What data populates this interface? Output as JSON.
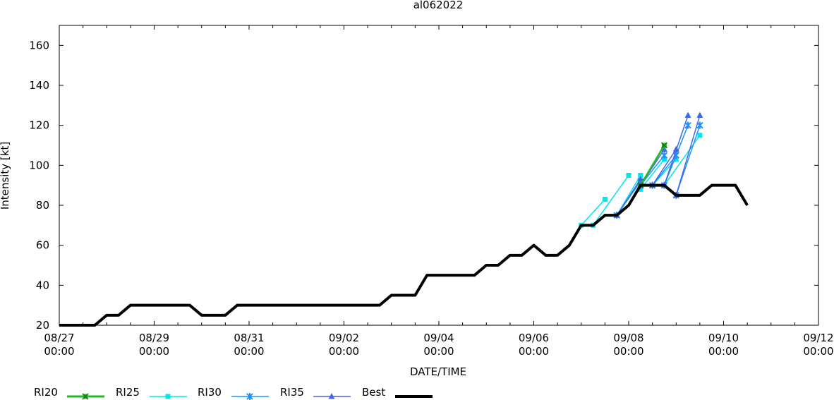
{
  "chart_data": {
    "type": "line",
    "title": "al062022",
    "xlabel": "DATE/TIME",
    "ylabel": "Intensity [kt]",
    "x_unit": "date/time (UTC)",
    "xlim": [
      "08/27 00:00",
      "09/12 00:00"
    ],
    "ylim": [
      20,
      170
    ],
    "grid": false,
    "legend_position": "bottom",
    "x_ticks": [
      {
        "date": "08/27",
        "time": "00:00",
        "day": 0
      },
      {
        "date": "08/29",
        "time": "00:00",
        "day": 2
      },
      {
        "date": "08/31",
        "time": "00:00",
        "day": 4
      },
      {
        "date": "09/02",
        "time": "00:00",
        "day": 6
      },
      {
        "date": "09/04",
        "time": "00:00",
        "day": 8
      },
      {
        "date": "09/06",
        "time": "00:00",
        "day": 10
      },
      {
        "date": "09/08",
        "time": "00:00",
        "day": 12
      },
      {
        "date": "09/10",
        "time": "00:00",
        "day": 14
      },
      {
        "date": "09/12",
        "time": "00:00",
        "day": 16
      }
    ],
    "y_ticks": [
      20,
      40,
      60,
      80,
      100,
      120,
      140,
      160
    ],
    "legend": [
      {
        "label": "RI20",
        "color": "#22bb22",
        "marker": "square-x"
      },
      {
        "label": "RI25",
        "color": "#00e5ee",
        "marker": "square"
      },
      {
        "label": "RI30",
        "color": "#1e90ff",
        "marker": "star"
      },
      {
        "label": "RI35",
        "color": "#4169e1",
        "marker": "triangle"
      },
      {
        "label": "Best",
        "color": "#000000",
        "marker": "none"
      }
    ],
    "series": [
      {
        "name": "Best",
        "color": "#000000",
        "points": [
          [
            "08/27 00Z",
            20
          ],
          [
            "08/27 06Z",
            20
          ],
          [
            "08/27 12Z",
            20
          ],
          [
            "08/27 18Z",
            20
          ],
          [
            "08/28 00Z",
            25
          ],
          [
            "08/28 06Z",
            25
          ],
          [
            "08/28 12Z",
            30
          ],
          [
            "08/28 18Z",
            30
          ],
          [
            "08/29 00Z",
            30
          ],
          [
            "08/29 06Z",
            30
          ],
          [
            "08/29 12Z",
            30
          ],
          [
            "08/29 18Z",
            30
          ],
          [
            "08/30 00Z",
            25
          ],
          [
            "08/30 06Z",
            25
          ],
          [
            "08/30 12Z",
            25
          ],
          [
            "08/30 18Z",
            30
          ],
          [
            "08/31 00Z",
            30
          ],
          [
            "08/31 06Z",
            30
          ],
          [
            "08/31 12Z",
            30
          ],
          [
            "08/31 18Z",
            30
          ],
          [
            "09/01 00Z",
            30
          ],
          [
            "09/01 06Z",
            30
          ],
          [
            "09/01 12Z",
            30
          ],
          [
            "09/01 18Z",
            30
          ],
          [
            "09/02 00Z",
            30
          ],
          [
            "09/02 06Z",
            30
          ],
          [
            "09/02 12Z",
            30
          ],
          [
            "09/02 18Z",
            30
          ],
          [
            "09/03 00Z",
            35
          ],
          [
            "09/03 06Z",
            35
          ],
          [
            "09/03 12Z",
            35
          ],
          [
            "09/03 18Z",
            45
          ],
          [
            "09/04 00Z",
            45
          ],
          [
            "09/04 06Z",
            45
          ],
          [
            "09/04 12Z",
            45
          ],
          [
            "09/04 18Z",
            45
          ],
          [
            "09/05 00Z",
            50
          ],
          [
            "09/05 06Z",
            50
          ],
          [
            "09/05 12Z",
            55
          ],
          [
            "09/05 18Z",
            55
          ],
          [
            "09/06 00Z",
            60
          ],
          [
            "09/06 06Z",
            55
          ],
          [
            "09/06 12Z",
            55
          ],
          [
            "09/06 18Z",
            60
          ],
          [
            "09/07 00Z",
            70
          ],
          [
            "09/07 06Z",
            70
          ],
          [
            "09/07 12Z",
            75
          ],
          [
            "09/07 18Z",
            75
          ],
          [
            "09/08 00Z",
            80
          ],
          [
            "09/08 06Z",
            90
          ],
          [
            "09/08 12Z",
            90
          ],
          [
            "09/08 18Z",
            90
          ],
          [
            "09/09 00Z",
            85
          ],
          [
            "09/09 06Z",
            85
          ],
          [
            "09/09 12Z",
            85
          ],
          [
            "09/09 18Z",
            90
          ],
          [
            "09/10 00Z",
            90
          ],
          [
            "09/10 06Z",
            90
          ],
          [
            "09/10 12Z",
            80
          ]
        ]
      },
      {
        "name": "RI20",
        "color": "#22bb22",
        "segments": [
          [
            [
              "09/08 06Z",
              90
            ],
            [
              "09/08 18Z",
              110
            ]
          ]
        ]
      },
      {
        "name": "RI25",
        "color": "#00e5ee",
        "segments": [
          [
            [
              "09/07 00Z",
              70
            ],
            [
              "09/07 12Z",
              83
            ]
          ],
          [
            [
              "09/07 06Z",
              70
            ],
            [
              "09/08 00Z",
              95
            ]
          ],
          [
            [
              "09/07 18Z",
              75
            ],
            [
              "09/08 06Z",
              95
            ]
          ],
          [
            [
              "09/08 06Z",
              88
            ],
            [
              "09/08 18Z",
              103
            ]
          ],
          [
            [
              "09/08 12Z",
              90
            ],
            [
              "09/09 00Z",
              103
            ]
          ],
          [
            [
              "09/08 18Z",
              90
            ],
            [
              "09/09 12Z",
              115
            ]
          ]
        ]
      },
      {
        "name": "RI30",
        "color": "#1e90ff",
        "segments": [
          [
            [
              "09/07 18Z",
              75
            ],
            [
              "09/08 06Z",
              92
            ]
          ],
          [
            [
              "09/08 06Z",
              90
            ],
            [
              "09/08 18Z",
              105
            ]
          ],
          [
            [
              "09/08 12Z",
              90
            ],
            [
              "09/09 00Z",
              105
            ]
          ],
          [
            [
              "09/08 18Z",
              90
            ],
            [
              "09/09 06Z",
              120
            ]
          ],
          [
            [
              "09/09 00Z",
              85
            ],
            [
              "09/09 12Z",
              120
            ]
          ]
        ]
      },
      {
        "name": "RI35",
        "color": "#4169e1",
        "segments": [
          [
            [
              "09/07 18Z",
              75
            ],
            [
              "09/08 06Z",
              93
            ]
          ],
          [
            [
              "09/08 06Z",
              90
            ],
            [
              "09/08 18Z",
              108
            ]
          ],
          [
            [
              "09/08 12Z",
              90
            ],
            [
              "09/09 00Z",
              108
            ]
          ],
          [
            [
              "09/08 18Z",
              90
            ],
            [
              "09/09 06Z",
              125
            ]
          ],
          [
            [
              "09/09 00Z",
              85
            ],
            [
              "09/09 12Z",
              125
            ]
          ]
        ]
      }
    ]
  }
}
